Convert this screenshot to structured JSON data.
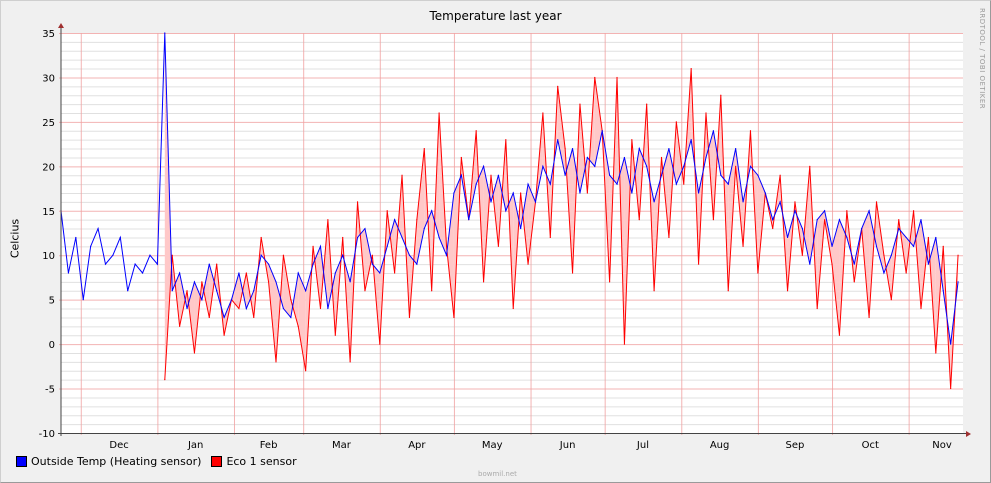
{
  "chart_data": {
    "type": "line",
    "title": "Temperature last year",
    "ylabel": "Celcius",
    "xlabel": "",
    "ylim": [
      -10,
      35
    ],
    "yticks": [
      -10,
      -5,
      0,
      5,
      10,
      15,
      20,
      25,
      30,
      35
    ],
    "x_unit": "days since start (Nov)",
    "xlim": [
      0,
      365
    ],
    "xticks": [
      {
        "label": "Dec",
        "start": 8,
        "end": 39
      },
      {
        "label": "Jan",
        "start": 39,
        "end": 70
      },
      {
        "label": "Feb",
        "start": 70,
        "end": 98
      },
      {
        "label": "Mar",
        "start": 98,
        "end": 129
      },
      {
        "label": "Apr",
        "start": 129,
        "end": 159
      },
      {
        "label": "May",
        "start": 159,
        "end": 190
      },
      {
        "label": "Jun",
        "start": 190,
        "end": 220
      },
      {
        "label": "Jul",
        "start": 220,
        "end": 251
      },
      {
        "label": "Aug",
        "start": 251,
        "end": 282
      },
      {
        "label": "Sep",
        "start": 282,
        "end": 312
      },
      {
        "label": "Oct",
        "start": 312,
        "end": 343
      },
      {
        "label": "Nov",
        "start": 343,
        "end": 373
      }
    ],
    "grid": true,
    "legend_position": "bottom-left",
    "series": [
      {
        "name": "Outside Temp (Heating sensor)",
        "color": "#0000ff",
        "x_start": 0,
        "x_step": 3,
        "values": [
          15,
          8,
          12,
          5,
          11,
          13,
          9,
          10,
          12,
          6,
          9,
          8,
          10,
          9,
          35,
          6,
          8,
          4,
          7,
          5,
          9,
          6,
          3,
          5,
          8,
          4,
          6,
          10,
          9,
          7,
          4,
          3,
          8,
          6,
          9,
          11,
          4,
          8,
          10,
          7,
          12,
          13,
          9,
          8,
          11,
          14,
          12,
          10,
          9,
          13,
          15,
          12,
          10,
          17,
          19,
          14,
          18,
          20,
          16,
          19,
          15,
          17,
          13,
          18,
          16,
          20,
          18,
          23,
          19,
          22,
          17,
          21,
          20,
          24,
          19,
          18,
          21,
          17,
          22,
          20,
          16,
          19,
          22,
          18,
          20,
          23,
          17,
          21,
          24,
          19,
          18,
          22,
          16,
          20,
          19,
          17,
          14,
          16,
          12,
          15,
          13,
          9,
          14,
          15,
          11,
          14,
          12,
          9,
          13,
          15,
          11,
          8,
          10,
          13,
          12,
          11,
          14,
          9,
          12,
          6,
          0,
          7
        ]
      },
      {
        "name": "Eco 1 sensor",
        "color": "#ff0000",
        "x_start": 42,
        "x_step": 3,
        "values": [
          -4,
          10,
          2,
          6,
          -1,
          7,
          3,
          9,
          1,
          5,
          4,
          8,
          3,
          12,
          7,
          -2,
          10,
          5,
          2,
          -3,
          11,
          4,
          14,
          1,
          12,
          -2,
          16,
          6,
          10,
          0,
          15,
          8,
          19,
          3,
          14,
          22,
          6,
          26,
          11,
          3,
          21,
          14,
          24,
          7,
          19,
          11,
          23,
          4,
          17,
          9,
          16,
          26,
          12,
          29,
          22,
          8,
          27,
          17,
          30,
          24,
          7,
          30,
          0,
          23,
          14,
          27,
          6,
          21,
          12,
          25,
          18,
          31,
          9,
          26,
          14,
          28,
          6,
          20,
          11,
          24,
          8,
          17,
          13,
          19,
          6,
          16,
          10,
          20,
          4,
          14,
          9,
          1,
          15,
          7,
          13,
          3,
          16,
          10,
          5,
          14,
          8,
          15,
          4,
          12,
          -1,
          11,
          -5,
          10
        ]
      }
    ],
    "difference_fill_color": "#ffc8c8"
  },
  "watermark": "RRDTOOL / TOBI OETIKER",
  "credit": "bowmil.net"
}
